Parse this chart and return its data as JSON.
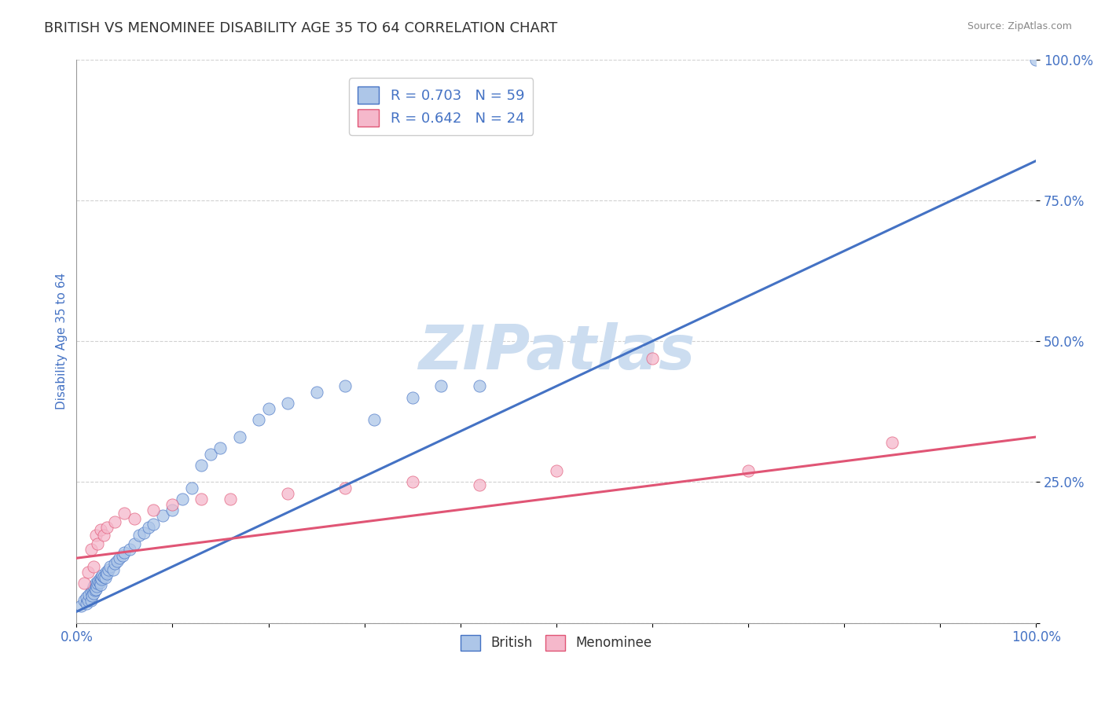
{
  "title": "BRITISH VS MENOMINEE DISABILITY AGE 35 TO 64 CORRELATION CHART",
  "source": "Source: ZipAtlas.com",
  "ylabel": "Disability Age 35 to 64",
  "xlim": [
    0,
    1.0
  ],
  "ylim": [
    0,
    1.0
  ],
  "british_R": 0.703,
  "british_N": 59,
  "menominee_R": 0.642,
  "menominee_N": 24,
  "british_color": "#adc6e8",
  "menominee_color": "#f5b8cb",
  "british_line_color": "#4472c4",
  "menominee_line_color": "#e05575",
  "watermark": "ZIPatlas",
  "british_scatter_x": [
    0.005,
    0.008,
    0.01,
    0.01,
    0.012,
    0.013,
    0.015,
    0.015,
    0.016,
    0.017,
    0.018,
    0.018,
    0.019,
    0.02,
    0.02,
    0.021,
    0.022,
    0.023,
    0.024,
    0.025,
    0.025,
    0.026,
    0.027,
    0.028,
    0.03,
    0.031,
    0.032,
    0.033,
    0.035,
    0.038,
    0.04,
    0.042,
    0.045,
    0.048,
    0.05,
    0.055,
    0.06,
    0.065,
    0.07,
    0.075,
    0.08,
    0.09,
    0.1,
    0.11,
    0.12,
    0.13,
    0.14,
    0.15,
    0.17,
    0.19,
    0.2,
    0.22,
    0.25,
    0.28,
    0.31,
    0.35,
    0.38,
    0.42,
    1.0
  ],
  "british_scatter_y": [
    0.03,
    0.04,
    0.035,
    0.045,
    0.04,
    0.05,
    0.04,
    0.055,
    0.048,
    0.06,
    0.052,
    0.065,
    0.058,
    0.06,
    0.07,
    0.065,
    0.07,
    0.075,
    0.072,
    0.068,
    0.08,
    0.078,
    0.085,
    0.082,
    0.08,
    0.09,
    0.088,
    0.095,
    0.1,
    0.095,
    0.105,
    0.11,
    0.115,
    0.12,
    0.125,
    0.13,
    0.14,
    0.155,
    0.16,
    0.17,
    0.175,
    0.19,
    0.2,
    0.22,
    0.24,
    0.28,
    0.3,
    0.31,
    0.33,
    0.36,
    0.38,
    0.39,
    0.41,
    0.42,
    0.36,
    0.4,
    0.42,
    0.42,
    1.0
  ],
  "menominee_scatter_x": [
    0.008,
    0.012,
    0.015,
    0.018,
    0.02,
    0.022,
    0.025,
    0.028,
    0.032,
    0.04,
    0.05,
    0.06,
    0.08,
    0.1,
    0.13,
    0.16,
    0.22,
    0.28,
    0.35,
    0.42,
    0.5,
    0.6,
    0.7,
    0.85
  ],
  "menominee_scatter_y": [
    0.07,
    0.09,
    0.13,
    0.1,
    0.155,
    0.14,
    0.165,
    0.155,
    0.17,
    0.18,
    0.195,
    0.185,
    0.2,
    0.21,
    0.22,
    0.22,
    0.23,
    0.24,
    0.25,
    0.245,
    0.27,
    0.47,
    0.27,
    0.32
  ],
  "british_trendline_x": [
    0.0,
    1.0
  ],
  "british_trendline_y": [
    0.02,
    0.82
  ],
  "menominee_trendline_x": [
    0.0,
    1.0
  ],
  "menominee_trendline_y": [
    0.115,
    0.33
  ],
  "ytick_positions": [
    0.0,
    0.25,
    0.5,
    0.75,
    1.0
  ],
  "ytick_labels": [
    "",
    "25.0%",
    "50.0%",
    "75.0%",
    "100.0%"
  ],
  "grid_color": "#cccccc",
  "bg_color": "#ffffff",
  "title_color": "#333333",
  "axis_label_color": "#4472c4",
  "watermark_color": "#ccddf0"
}
